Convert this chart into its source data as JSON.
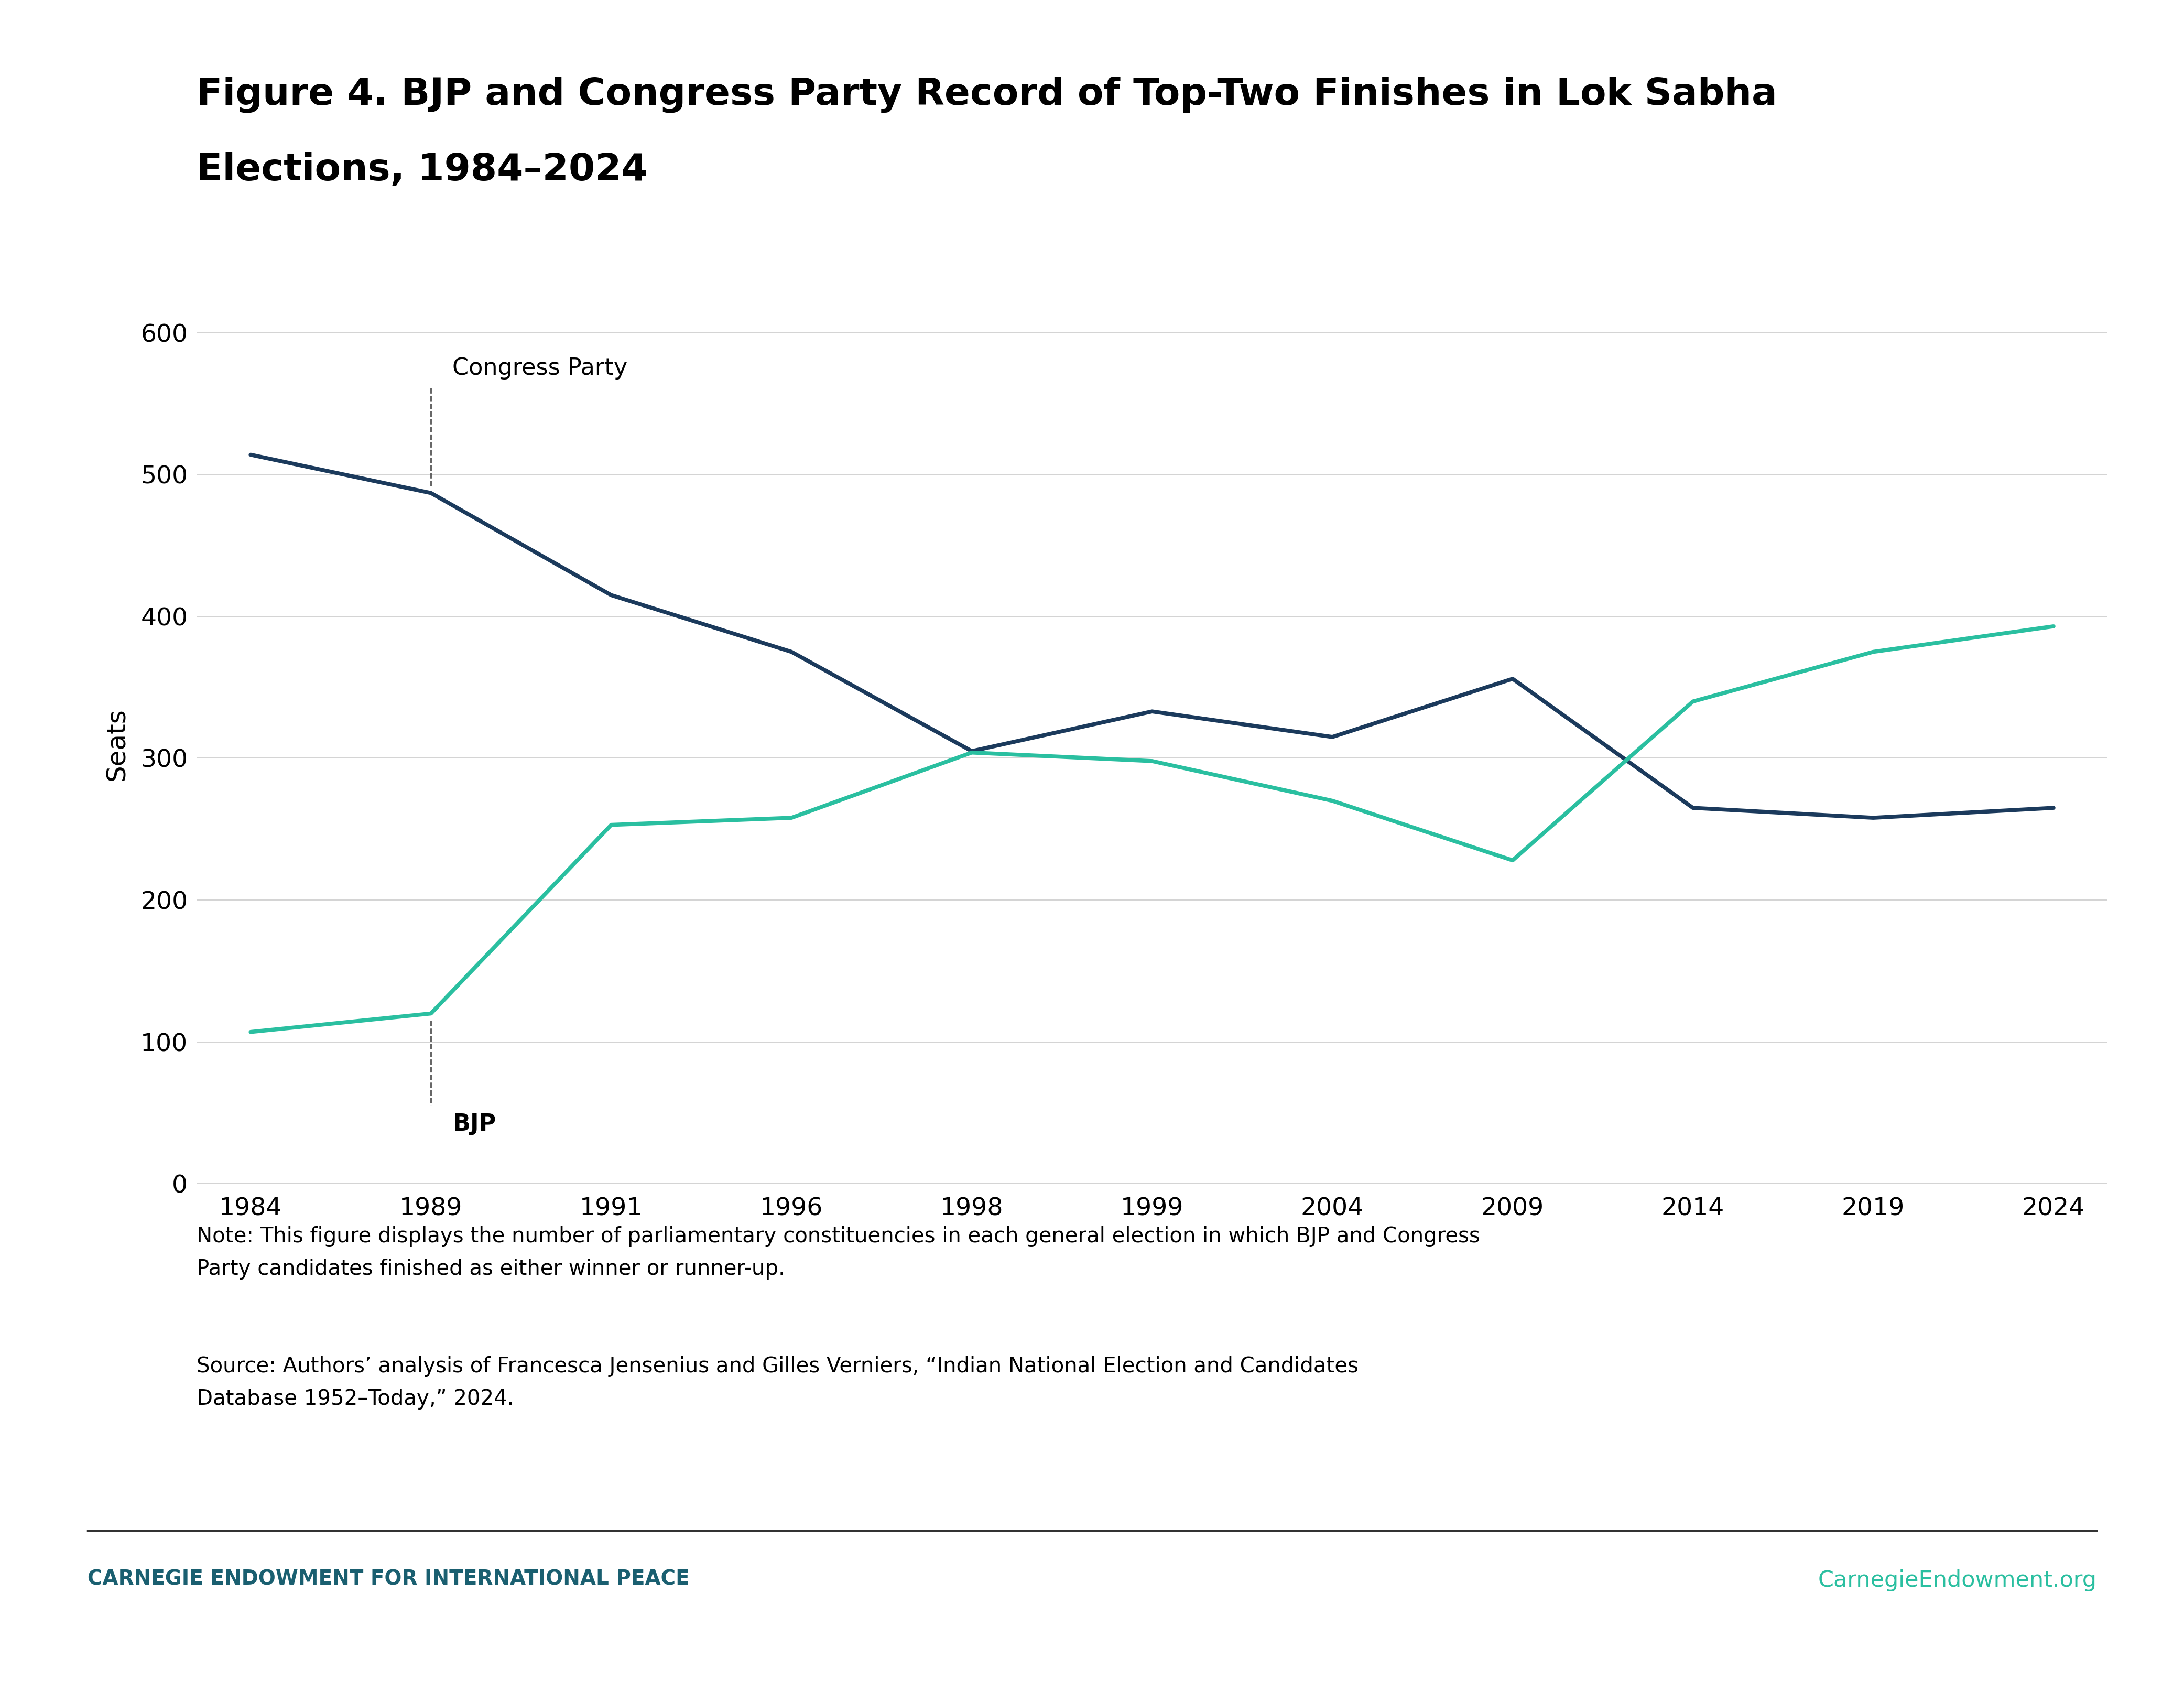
{
  "title_line1": "Figure 4. BJP and Congress Party Record of Top-Two Finishes in Lok Sabha",
  "title_line2": "Elections, 1984–2024",
  "years": [
    "1984",
    "1989",
    "1991",
    "1996",
    "1998",
    "1999",
    "2004",
    "2009",
    "2014",
    "2019",
    "2024"
  ],
  "congress_seats": [
    514,
    487,
    415,
    375,
    305,
    333,
    315,
    356,
    265,
    258,
    265
  ],
  "bjp_seats": [
    107,
    120,
    253,
    258,
    304,
    298,
    270,
    228,
    340,
    375,
    393
  ],
  "congress_color": "#1b3a5c",
  "bjp_color": "#2abfa0",
  "ylabel": "Seats",
  "ylim": [
    0,
    620
  ],
  "yticks": [
    0,
    100,
    200,
    300,
    400,
    500,
    600
  ],
  "note_text": "Note: This figure displays the number of parliamentary constituencies in each general election in which BJP and Congress\nParty candidates finished as either winner or runner-up.",
  "source_text": "Source: Authors’ analysis of Francesca Jensenius and Gilles Verniers, “Indian National Election and Candidates\nDatabase 1952–Today,” 2024.",
  "footer_left": "CARNEGIE ENDOWMENT FOR INTERNATIONAL PEACE",
  "footer_right": "CarnegieEndowment.org",
  "line_width": 5.5,
  "background_color": "#ffffff",
  "grid_color": "#cccccc",
  "title_fontsize": 52,
  "label_fontsize": 36,
  "tick_fontsize": 34,
  "annotation_fontsize": 32,
  "note_fontsize": 29,
  "footer_fontsize": 28
}
